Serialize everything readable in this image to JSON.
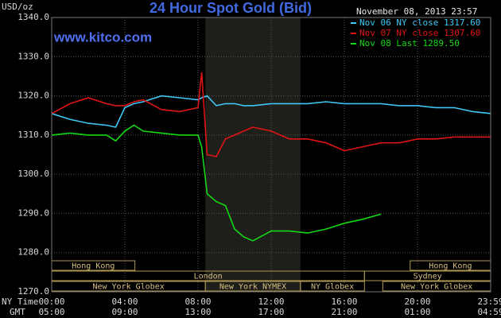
{
  "chart_data": {
    "type": "line",
    "title": "24 Hour Spot Gold (Bid)",
    "source": "www.kitco.com",
    "timestamp": "November 08, 2013 23:57",
    "y_label": "USD/oz",
    "x_row_labels": [
      "NY Time",
      "GMT"
    ],
    "x": [
      0,
      1,
      2,
      3,
      3.5,
      4,
      4.5,
      5,
      6,
      7,
      8,
      8.2,
      8.5,
      9,
      9.5,
      10,
      10.5,
      11,
      12,
      13,
      14,
      15,
      16,
      17,
      18,
      19,
      20,
      21,
      22,
      23,
      24
    ],
    "series": [
      {
        "name": "Nov 06 NY close 1317.60",
        "color": "#3fc6f4",
        "values": [
          1315.5,
          1314,
          1313,
          1312.5,
          1312,
          1317,
          1318,
          1318.5,
          1320,
          1319.5,
          1319,
          1319.5,
          1320,
          1317.5,
          1318,
          1318,
          1317.5,
          1317.5,
          1318,
          1318,
          1318,
          1318.5,
          1318,
          1318,
          1318,
          1317.5,
          1317.5,
          1317,
          1317,
          1316,
          1315.5
        ]
      },
      {
        "name": "Nov 07 NY close 1307.60",
        "color": "#e01414",
        "values": [
          1315.5,
          1318,
          1319.5,
          1318,
          1317.5,
          1317.5,
          1318.5,
          1319,
          1316.5,
          1316,
          1317,
          1326,
          1305,
          1304.5,
          1309,
          1310,
          1311,
          1312,
          1311,
          1309,
          1309,
          1308,
          1306,
          1307,
          1308,
          1308,
          1309,
          1309,
          1309.5,
          1309.5,
          1309.5
        ]
      },
      {
        "name": "Nov 08 Last 1289.50",
        "color": "#14d814",
        "values": [
          1310,
          1310.5,
          1310,
          1310,
          1308.5,
          1311,
          1312.5,
          1311,
          1310.5,
          1310,
          1310,
          1307,
          1295,
          1293,
          1292,
          1286,
          1284,
          1283,
          1285.5,
          1285.5,
          1285,
          1286,
          1287.5,
          1288.5,
          1289.8,
          null,
          null,
          null,
          null,
          null,
          null
        ]
      }
    ],
    "xlim": [
      0,
      24
    ],
    "xticks": [
      {
        "value": 0,
        "label": "00:00"
      },
      {
        "value": 4,
        "label": "04:00"
      },
      {
        "value": 8,
        "label": "08:00"
      },
      {
        "value": 12,
        "label": "12:00"
      },
      {
        "value": 16,
        "label": "16:00"
      },
      {
        "value": 20,
        "label": "20:00"
      },
      {
        "value": 24,
        "label": "23:59"
      }
    ],
    "gmt_labels": [
      "05:00",
      "09:00",
      "13:00",
      "17:00",
      "21:00",
      "01:00",
      "04:59"
    ],
    "ylim": [
      1270,
      1340
    ],
    "yticks": [
      {
        "value": 1270,
        "label": "1270.0"
      },
      {
        "value": 1280,
        "label": "1280.0"
      },
      {
        "value": 1290,
        "label": "1290.0"
      },
      {
        "value": 1300,
        "label": "1300.0"
      },
      {
        "value": 1310,
        "label": "1310.0"
      },
      {
        "value": 1320,
        "label": "1320.0"
      },
      {
        "value": 1330,
        "label": "1330.0"
      },
      {
        "value": 1340,
        "label": "1340.0"
      }
    ],
    "grid": true,
    "shade": [
      8.4,
      13.6
    ],
    "sessions": [
      [
        {
          "label": "Hong Kong",
          "start": 0,
          "end": 4.55
        },
        {
          "label": "Hong Kong",
          "start": 19.6,
          "end": 24
        }
      ],
      [
        {
          "label": "London",
          "start": 0,
          "end": 17.1
        },
        {
          "label": "Sydney",
          "start": 17.1,
          "end": 24
        }
      ],
      [
        {
          "label": "New York Globex",
          "start": 0,
          "end": 8.4
        },
        {
          "label": "New York NYMEX",
          "start": 8.4,
          "end": 13.6
        },
        {
          "label": "NY Globex",
          "start": 13.6,
          "end": 17.1
        },
        {
          "label": "New York Globex",
          "start": 18.1,
          "end": 24
        }
      ]
    ]
  }
}
